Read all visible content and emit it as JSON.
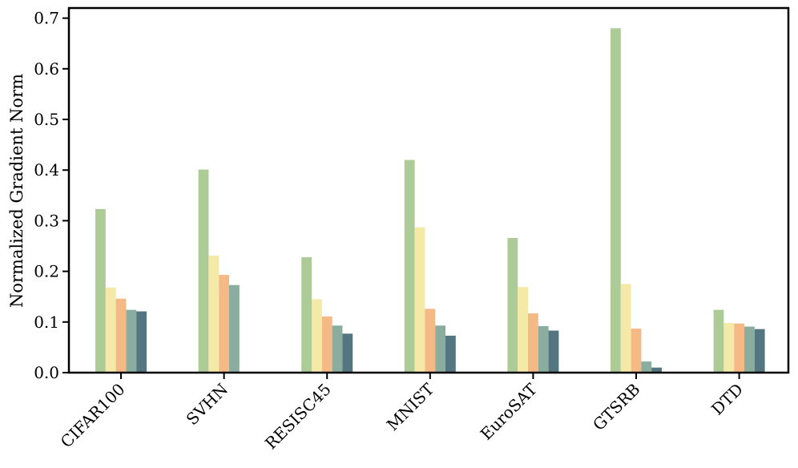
{
  "chart_data": {
    "type": "bar",
    "title": "",
    "xlabel": "",
    "ylabel": "Normalized Gradient Norm",
    "ylim": [
      0,
      0.72
    ],
    "yticks": [
      0.0,
      0.1,
      0.2,
      0.3,
      0.4,
      0.5,
      0.6,
      0.7
    ],
    "ytick_labels": [
      "0.0",
      "0.1",
      "0.2",
      "0.3",
      "0.4",
      "0.5",
      "0.6",
      "0.7"
    ],
    "grid": false,
    "legend": "none",
    "categories": [
      "CIFAR100",
      "SVHN",
      "RESISC45",
      "MNIST",
      "EuroSAT",
      "GTSRB",
      "DTD"
    ],
    "series_colors": [
      "#adcb97",
      "#f5e9a8",
      "#f5b985",
      "#8aada0",
      "#537680"
    ],
    "series": [
      {
        "values": [
          0.323,
          0.401,
          0.228,
          0.42,
          0.266,
          0.68,
          0.124
        ]
      },
      {
        "values": [
          0.168,
          0.231,
          0.145,
          0.287,
          0.169,
          0.175,
          0.098
        ]
      },
      {
        "values": [
          0.146,
          0.193,
          0.111,
          0.126,
          0.117,
          0.087,
          0.097
        ]
      },
      {
        "values": [
          0.124,
          0.173,
          0.093,
          0.093,
          0.092,
          0.022,
          0.091
        ]
      },
      {
        "values": [
          0.121,
          0.0,
          0.077,
          0.073,
          0.083,
          0.01,
          0.086
        ]
      }
    ]
  }
}
